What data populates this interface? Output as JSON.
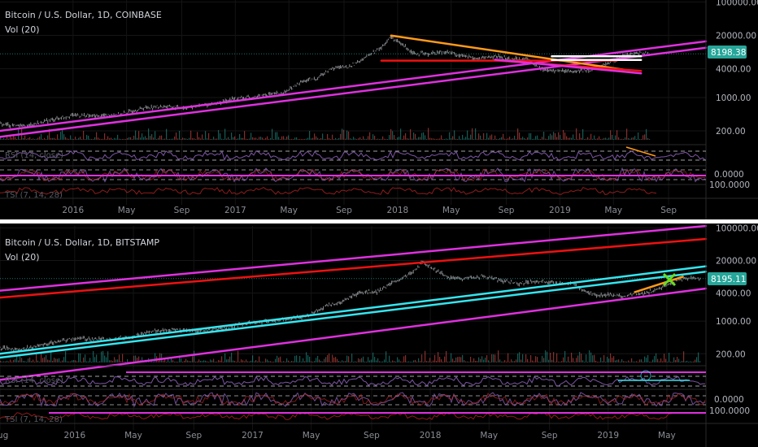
{
  "colors": {
    "background": "#000000",
    "candle": "#b9bcc2",
    "volume_up": "#26a69a",
    "volume_down": "#ef5350",
    "magenta": "#e030e0",
    "red": "#ee1111",
    "orange": "#ff9a1a",
    "cyan": "#33e6ef",
    "white": "#ffffff",
    "price_tag": "#26a69a",
    "osc_purple": "#8a5fb8",
    "osc_red": "#cc2a2a"
  },
  "chart_data": [
    {
      "type": "line",
      "title": "Bitcoin / U.S. Dollar, 1D, COINBASE",
      "volume_label": "Vol (20)",
      "oscillator_label_1": "RSI (14, close)",
      "oscillator_label_2": "TSI (7, 14, 28)",
      "price_tag": "8198.38",
      "y_ticks": [
        "100000.00",
        "20000.00",
        "4000.00",
        "1000.00",
        "200.00"
      ],
      "y_tick_values": [
        100000,
        20000,
        4000,
        1000,
        200
      ],
      "osc_ticks": [
        "0.0000",
        "100.0000"
      ],
      "x_ticks": [
        "2016",
        "May",
        "Sep",
        "2017",
        "May",
        "Sep",
        "2018",
        "May",
        "Sep",
        "2019",
        "May",
        "Sep"
      ],
      "x_tick_values": [
        2016.0,
        2016.33,
        2016.67,
        2017.0,
        2017.33,
        2017.67,
        2018.0,
        2018.33,
        2018.67,
        2019.0,
        2019.33,
        2019.67
      ],
      "xlim": [
        2015.55,
        2019.9
      ],
      "ylim": [
        130,
        110000
      ],
      "scale": "log",
      "price_series": {
        "x": [
          2015.55,
          2015.7,
          2015.85,
          2016.0,
          2016.15,
          2016.3,
          2016.45,
          2016.55,
          2016.7,
          2016.85,
          2017.0,
          2017.1,
          2017.2,
          2017.3,
          2017.42,
          2017.5,
          2017.6,
          2017.7,
          2017.8,
          2017.9,
          2017.96,
          2018.0,
          2018.05,
          2018.1,
          2018.2,
          2018.3,
          2018.4,
          2018.5,
          2018.6,
          2018.7,
          2018.8,
          2018.88,
          2018.93,
          2019.0,
          2019.1,
          2019.2,
          2019.3,
          2019.4,
          2019.48,
          2019.55
        ],
        "y": [
          280,
          250,
          330,
          430,
          410,
          450,
          620,
          650,
          610,
          720,
          960,
          1000,
          1150,
          1250,
          2200,
          2500,
          4200,
          4300,
          7000,
          11000,
          19000,
          14500,
          11500,
          8500,
          8300,
          9200,
          7400,
          6500,
          7300,
          6500,
          6400,
          4200,
          3600,
          3700,
          3500,
          3900,
          5200,
          7800,
          8600,
          8200
        ]
      },
      "drawings": [
        {
          "color": "magenta",
          "x": [
            2015.55,
            2019.9
          ],
          "y": [
            200,
            15000
          ]
        },
        {
          "color": "magenta",
          "x": [
            2015.55,
            2019.9
          ],
          "y": [
            150,
            11000
          ]
        },
        {
          "color": "red",
          "x": [
            2017.9,
            2019.35
          ],
          "y": [
            5900,
            5900
          ]
        },
        {
          "color": "orange",
          "x": [
            2017.96,
            2019.4
          ],
          "y": [
            19800,
            3800
          ]
        },
        {
          "color": "white",
          "x": [
            2018.95,
            2019.5
          ],
          "y": [
            7300,
            7300
          ]
        },
        {
          "color": "white",
          "x": [
            2018.95,
            2019.5
          ],
          "y": [
            6100,
            6100
          ]
        },
        {
          "color": "red",
          "x": [
            2018.6,
            2019.5
          ],
          "y": [
            6000,
            3600
          ]
        },
        {
          "color": "magenta",
          "x": [
            2018.6,
            2019.5
          ],
          "y": [
            6200,
            3200
          ]
        }
      ]
    },
    {
      "type": "line",
      "title": "Bitcoin / U.S. Dollar, 1D, BITSTAMP",
      "volume_label": "Vol (20)",
      "oscillator_label_1": "RSI (14, close)",
      "oscillator_label_2": "TSI (7, 14, 28)",
      "price_tag": "8195.11",
      "y_ticks": [
        "100000.00",
        "20000.00",
        "4000.00",
        "1000.00",
        "200.00"
      ],
      "y_tick_values": [
        100000,
        20000,
        4000,
        1000,
        200
      ],
      "osc_ticks": [
        "0.0000",
        "100.0000"
      ],
      "x_ticks": [
        "Aug",
        "2016",
        "May",
        "Sep",
        "2017",
        "May",
        "Sep",
        "2018",
        "May",
        "Sep",
        "2019",
        "May"
      ],
      "x_tick_values": [
        2015.58,
        2016.0,
        2016.33,
        2016.67,
        2017.0,
        2017.33,
        2017.67,
        2018.0,
        2018.33,
        2018.67,
        2019.0,
        2019.33
      ],
      "xlim": [
        2015.58,
        2019.55
      ],
      "ylim": [
        130,
        110000
      ],
      "scale": "log",
      "price_series": {
        "x": [
          2015.58,
          2015.7,
          2015.85,
          2016.0,
          2016.15,
          2016.3,
          2016.45,
          2016.55,
          2016.7,
          2016.85,
          2017.0,
          2017.1,
          2017.2,
          2017.3,
          2017.42,
          2017.5,
          2017.6,
          2017.7,
          2017.8,
          2017.9,
          2017.96,
          2018.0,
          2018.05,
          2018.1,
          2018.2,
          2018.3,
          2018.4,
          2018.5,
          2018.6,
          2018.7,
          2018.8,
          2018.88,
          2018.93,
          2019.0,
          2019.1,
          2019.2,
          2019.3,
          2019.4,
          2019.48,
          2019.52
        ],
        "y": [
          270,
          250,
          330,
          430,
          410,
          450,
          620,
          650,
          610,
          720,
          960,
          1000,
          1150,
          1250,
          2200,
          2500,
          4200,
          4300,
          7000,
          11000,
          19000,
          14500,
          11500,
          8500,
          8300,
          9200,
          7400,
          6500,
          7300,
          6500,
          6400,
          4200,
          3600,
          3700,
          3500,
          3900,
          5200,
          7800,
          8600,
          8200
        ]
      },
      "drawings": [
        {
          "color": "magenta",
          "x": [
            2015.58,
            2019.55
          ],
          "y": [
            4500,
            110000
          ]
        },
        {
          "color": "red",
          "x": [
            2015.58,
            2019.55
          ],
          "y": [
            3200,
            58000
          ]
        },
        {
          "color": "cyan",
          "x": [
            2015.58,
            2019.55
          ],
          "y": [
            200,
            15000
          ]
        },
        {
          "color": "cyan",
          "x": [
            2015.58,
            2019.55
          ],
          "y": [
            165,
            11500
          ]
        },
        {
          "color": "magenta",
          "x": [
            2015.58,
            2019.55
          ],
          "y": [
            55,
            5000
          ]
        },
        {
          "color": "orange",
          "x": [
            2019.15,
            2019.42
          ],
          "y": [
            4200,
            9000
          ]
        }
      ]
    }
  ]
}
